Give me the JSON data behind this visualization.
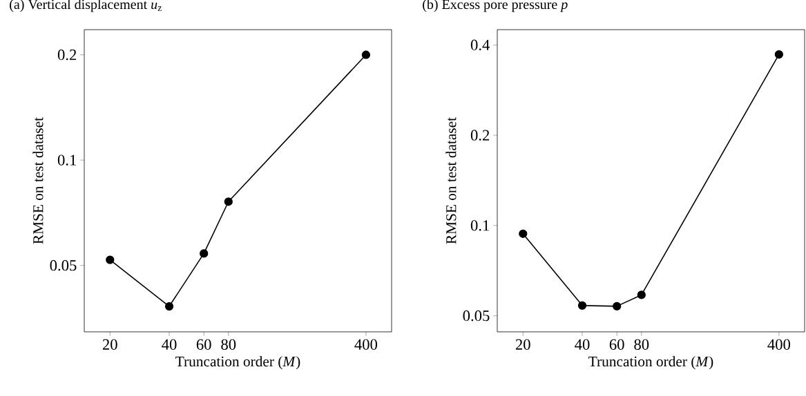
{
  "chart_data": [
    {
      "type": "line",
      "title": "(a) Vertical displacement *u*$_{z}$",
      "xlabel": "Truncation order (*M*)",
      "ylabel": "RMSE on test dataset",
      "log": "xy",
      "marker": "circle",
      "line_style": "solid",
      "x": [
        20,
        40,
        60,
        80,
        400
      ],
      "xlim": [
        14.8,
        540
      ],
      "xticks": [
        20,
        40,
        60,
        80,
        400
      ],
      "ylim": [
        0.0323,
        0.236
      ],
      "yticks": [
        0.05,
        0.1,
        0.2
      ],
      "series": [
        {
          "color": "#000000",
          "values": [
            0.0519,
            0.0382,
            0.0541,
            0.0761,
            0.2
          ]
        }
      ]
    },
    {
      "type": "line",
      "title": "(b) Excess pore pressure *p*",
      "xlabel": "Truncation order (*M*)",
      "ylabel": "RMSE on test dataset",
      "log": "xy",
      "marker": "circle",
      "line_style": "solid",
      "x": [
        20,
        40,
        60,
        80,
        400
      ],
      "xlim": [
        14.8,
        540
      ],
      "xticks": [
        20,
        40,
        60,
        80,
        400
      ],
      "ylim": [
        0.0442,
        0.45
      ],
      "yticks": [
        0.05,
        0.1,
        0.2,
        0.4
      ],
      "series": [
        {
          "color": "#000000",
          "values": [
            0.0939,
            0.0541,
            0.0538,
            0.0587,
            0.372
          ]
        }
      ]
    }
  ]
}
